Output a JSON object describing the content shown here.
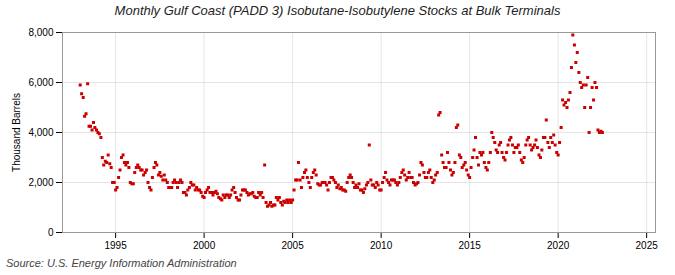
{
  "chart_data": {
    "type": "scatter",
    "title": "Monthly Gulf Coast (PADD 3) Isobutane-Isobutylene Stocks at Bulk Terminals",
    "ylabel": "Thousand Barrels",
    "annotations": [
      "Source: U.S. Energy Information Administration"
    ],
    "color": "#cc0000",
    "marker": "square",
    "grid": true,
    "xlim": [
      1992.0,
      2025.5
    ],
    "xticks": [
      1995,
      2000,
      2005,
      2010,
      2015,
      2020,
      2025
    ],
    "ylim": [
      0,
      8000
    ],
    "yticks": [
      0,
      {
        "value": 2000,
        "label": "2,000"
      },
      {
        "value": 4000,
        "label": "4,000"
      },
      {
        "value": 6000,
        "label": "6,000"
      },
      {
        "value": 8000,
        "label": "8,000"
      }
    ],
    "x": [
      1993.0,
      1993.08,
      1993.17,
      1993.25,
      1993.33,
      1993.42,
      1993.5,
      1993.58,
      1993.67,
      1993.75,
      1993.83,
      1993.92,
      1994.0,
      1994.08,
      1994.17,
      1994.25,
      1994.33,
      1994.42,
      1994.5,
      1994.58,
      1994.67,
      1994.75,
      1994.83,
      1994.92,
      1995.0,
      1995.08,
      1995.17,
      1995.25,
      1995.33,
      1995.42,
      1995.5,
      1995.58,
      1995.67,
      1995.75,
      1995.83,
      1995.92,
      1996.0,
      1996.08,
      1996.17,
      1996.25,
      1996.33,
      1996.42,
      1996.5,
      1996.58,
      1996.67,
      1996.75,
      1996.83,
      1996.92,
      1997.0,
      1997.08,
      1997.17,
      1997.25,
      1997.33,
      1997.42,
      1997.5,
      1997.58,
      1997.67,
      1997.75,
      1997.83,
      1997.92,
      1998.0,
      1998.08,
      1998.17,
      1998.25,
      1998.33,
      1998.42,
      1998.5,
      1998.58,
      1998.67,
      1998.75,
      1998.83,
      1998.92,
      1999.0,
      1999.08,
      1999.17,
      1999.25,
      1999.33,
      1999.42,
      1999.5,
      1999.58,
      1999.67,
      1999.75,
      1999.83,
      1999.92,
      2000.0,
      2000.08,
      2000.17,
      2000.25,
      2000.33,
      2000.42,
      2000.5,
      2000.58,
      2000.67,
      2000.75,
      2000.83,
      2000.92,
      2001.0,
      2001.08,
      2001.17,
      2001.25,
      2001.33,
      2001.42,
      2001.5,
      2001.58,
      2001.67,
      2001.75,
      2001.83,
      2001.92,
      2002.0,
      2002.08,
      2002.17,
      2002.25,
      2002.33,
      2002.42,
      2002.5,
      2002.58,
      2002.67,
      2002.75,
      2002.83,
      2002.92,
      2003.0,
      2003.08,
      2003.17,
      2003.25,
      2003.33,
      2003.42,
      2003.5,
      2003.58,
      2003.67,
      2003.75,
      2003.83,
      2003.92,
      2004.0,
      2004.08,
      2004.17,
      2004.25,
      2004.33,
      2004.42,
      2004.5,
      2004.58,
      2004.67,
      2004.75,
      2004.83,
      2004.92,
      2005.0,
      2005.08,
      2005.17,
      2005.25,
      2005.33,
      2005.42,
      2005.5,
      2005.58,
      2005.67,
      2005.75,
      2005.83,
      2005.92,
      2006.0,
      2006.08,
      2006.17,
      2006.25,
      2006.33,
      2006.42,
      2006.5,
      2006.58,
      2006.67,
      2006.75,
      2006.83,
      2006.92,
      2007.0,
      2007.08,
      2007.17,
      2007.25,
      2007.33,
      2007.42,
      2007.5,
      2007.58,
      2007.67,
      2007.75,
      2007.83,
      2007.92,
      2008.0,
      2008.08,
      2008.17,
      2008.25,
      2008.33,
      2008.42,
      2008.5,
      2008.58,
      2008.67,
      2008.75,
      2008.83,
      2008.92,
      2009.0,
      2009.08,
      2009.17,
      2009.25,
      2009.33,
      2009.42,
      2009.5,
      2009.58,
      2009.67,
      2009.75,
      2009.83,
      2009.92,
      2010.0,
      2010.08,
      2010.17,
      2010.25,
      2010.33,
      2010.42,
      2010.5,
      2010.58,
      2010.67,
      2010.75,
      2010.83,
      2010.92,
      2011.0,
      2011.08,
      2011.17,
      2011.25,
      2011.33,
      2011.42,
      2011.5,
      2011.58,
      2011.67,
      2011.75,
      2011.83,
      2011.92,
      2012.0,
      2012.08,
      2012.17,
      2012.25,
      2012.33,
      2012.42,
      2012.5,
      2012.58,
      2012.67,
      2012.75,
      2012.83,
      2012.92,
      2013.0,
      2013.08,
      2013.17,
      2013.25,
      2013.33,
      2013.42,
      2013.5,
      2013.58,
      2013.67,
      2013.75,
      2013.83,
      2013.92,
      2014.0,
      2014.08,
      2014.17,
      2014.25,
      2014.33,
      2014.42,
      2014.5,
      2014.58,
      2014.67,
      2014.75,
      2014.83,
      2014.92,
      2015.0,
      2015.08,
      2015.17,
      2015.25,
      2015.33,
      2015.42,
      2015.5,
      2015.58,
      2015.67,
      2015.75,
      2015.83,
      2015.92,
      2016.0,
      2016.08,
      2016.17,
      2016.25,
      2016.33,
      2016.42,
      2016.5,
      2016.58,
      2016.67,
      2016.75,
      2016.83,
      2016.92,
      2017.0,
      2017.08,
      2017.17,
      2017.25,
      2017.33,
      2017.42,
      2017.5,
      2017.58,
      2017.67,
      2017.75,
      2017.83,
      2017.92,
      2018.0,
      2018.08,
      2018.17,
      2018.25,
      2018.33,
      2018.42,
      2018.5,
      2018.58,
      2018.67,
      2018.75,
      2018.83,
      2018.92,
      2019.0,
      2019.08,
      2019.17,
      2019.25,
      2019.33,
      2019.42,
      2019.5,
      2019.58,
      2019.67,
      2019.75,
      2019.83,
      2019.92,
      2020.0,
      2020.08,
      2020.17,
      2020.25,
      2020.33,
      2020.42,
      2020.5,
      2020.58,
      2020.67,
      2020.75,
      2020.83,
      2020.92,
      2021.0,
      2021.08,
      2021.17,
      2021.25,
      2021.33,
      2021.42,
      2021.5,
      2021.58,
      2021.67,
      2021.75,
      2021.83,
      2021.92,
      2022.0,
      2022.08,
      2022.17,
      2022.25,
      2022.33,
      2022.42,
      2022.5
    ],
    "values": [
      5900,
      5550,
      5400,
      4650,
      4750,
      5950,
      4250,
      4250,
      4100,
      4400,
      4200,
      4100,
      4000,
      3950,
      3800,
      3000,
      2700,
      2850,
      2800,
      3100,
      2750,
      2600,
      2000,
      2000,
      1700,
      1800,
      2200,
      2500,
      3000,
      3100,
      2800,
      2700,
      2800,
      2600,
      2000,
      1950,
      1950,
      2400,
      2600,
      2700,
      2600,
      2500,
      2500,
      2300,
      2400,
      2500,
      2000,
      1800,
      1700,
      2200,
      2600,
      2800,
      2700,
      2300,
      2400,
      2250,
      2100,
      2300,
      2100,
      2000,
      1800,
      1800,
      1800,
      2000,
      2100,
      2000,
      1800,
      2000,
      2100,
      2000,
      1600,
      1600,
      1500,
      1700,
      1800,
      2000,
      1900,
      1900,
      1700,
      1800,
      1700,
      1700,
      1600,
      1450,
      1400,
      1600,
      1700,
      1800,
      1600,
      1600,
      1500,
      1600,
      1650,
      1550,
      1400,
      1350,
      1300,
      1500,
      1400,
      1500,
      1500,
      1400,
      1500,
      1700,
      1800,
      1600,
      1400,
      1300,
      1300,
      1500,
      1700,
      1700,
      1700,
      1600,
      1500,
      1550,
      1550,
      1600,
      1450,
      1400,
      1400,
      1600,
      1500,
      1600,
      1400,
      2700,
      1200,
      1050,
      1100,
      1200,
      1050,
      1100,
      1100,
      1400,
      1300,
      1400,
      1200,
      1100,
      1250,
      1200,
      1300,
      1200,
      1300,
      1200,
      1300,
      1700,
      2100,
      2100,
      2800,
      2100,
      1800,
      2200,
      2400,
      2500,
      2200,
      2000,
      1800,
      2200,
      2400,
      2500,
      2300,
      1950,
      1900,
      1900,
      2000,
      2000,
      2000,
      1900,
      1700,
      2000,
      2200,
      2200,
      2100,
      2000,
      1800,
      1900,
      1750,
      1800,
      1700,
      1700,
      1650,
      2000,
      2200,
      2300,
      2200,
      2000,
      1800,
      1900,
      1800,
      1950,
      1700,
      1700,
      1600,
      1750,
      1900,
      2000,
      3500,
      2100,
      1900,
      1900,
      1800,
      2000,
      1900,
      1700,
      1700,
      2000,
      2200,
      2400,
      2100,
      2000,
      1900,
      2100,
      2100,
      2100,
      2000,
      1900,
      2000,
      2200,
      2400,
      2500,
      2300,
      2100,
      2200,
      2400,
      2200,
      2200,
      2000,
      1900,
      1950,
      2000,
      2300,
      2800,
      2700,
      2400,
      2200,
      2200,
      2400,
      2500,
      2200,
      2000,
      2100,
      2300,
      2400,
      4700,
      4800,
      3100,
      2800,
      2600,
      2600,
      3200,
      2800,
      2500,
      2300,
      2400,
      2800,
      4200,
      4300,
      3100,
      3000,
      2600,
      2700,
      2800,
      2500,
      2300,
      2200,
      2600,
      3000,
      3300,
      3800,
      3000,
      2700,
      3200,
      3100,
      3200,
      2800,
      2600,
      2500,
      2800,
      3200,
      4000,
      3800,
      3600,
      3300,
      3200,
      3500,
      3600,
      3200,
      3000,
      2900,
      3200,
      3500,
      3700,
      3800,
      3500,
      3200,
      3400,
      3400,
      3500,
      3200,
      2900,
      2800,
      3000,
      3500,
      3700,
      3800,
      3500,
      3300,
      3400,
      3500,
      3700,
      3400,
      3100,
      3000,
      3300,
      3800,
      3800,
      4500,
      3600,
      3400,
      3800,
      3600,
      3900,
      3500,
      3200,
      3100,
      3600,
      4200,
      5300,
      5100,
      5200,
      5000,
      5300,
      5600,
      6600,
      7900,
      7500,
      6800,
      7200,
      6400,
      6000,
      5800,
      5900,
      5000,
      5900,
      6200,
      4000,
      5000,
      5800,
      5300,
      6000,
      5800,
      4100,
      4000,
      4050,
      4000
    ]
  }
}
